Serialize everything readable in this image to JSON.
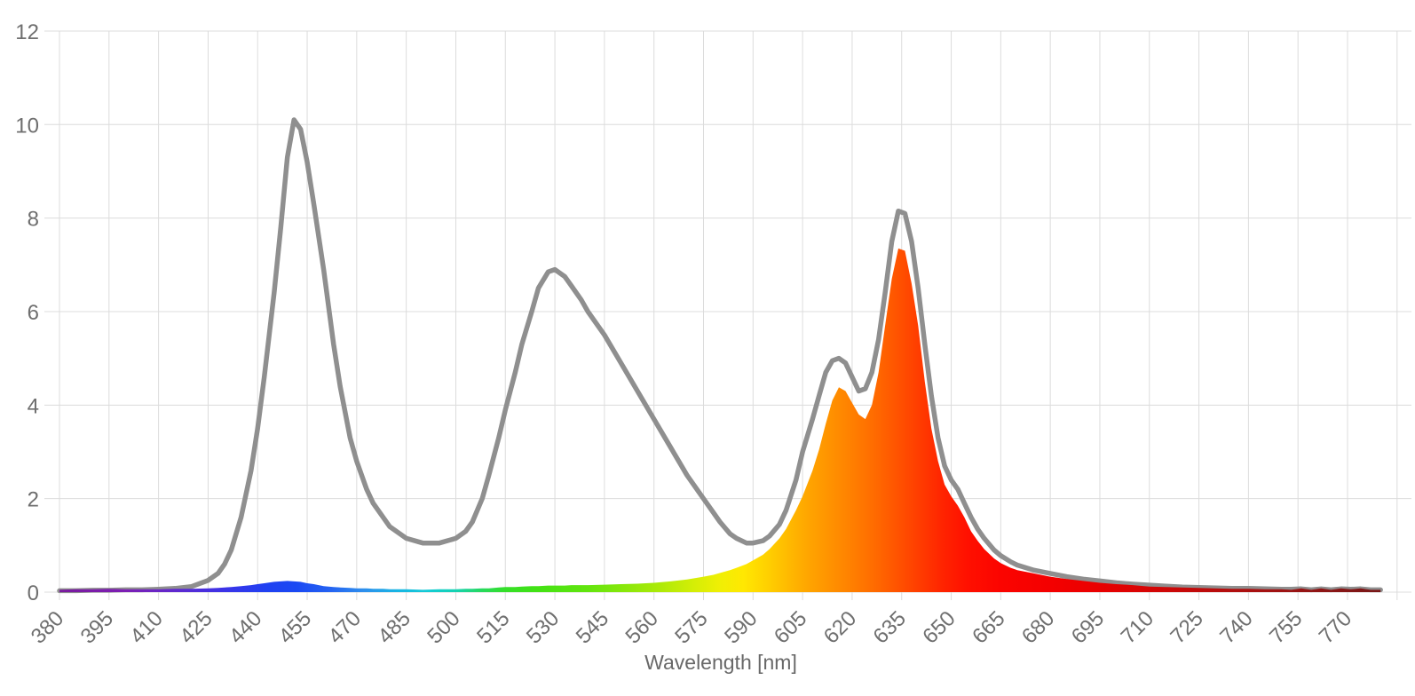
{
  "page": {
    "background": "#ffffff"
  },
  "chart_data": {
    "type": "area",
    "title": "",
    "xlabel": "Wavelength [nm]",
    "ylabel": "",
    "x_axis": {
      "min": 380,
      "max": 789,
      "tick_step": 15,
      "tick_labels": [
        380,
        395,
        410,
        425,
        440,
        455,
        470,
        485,
        500,
        515,
        530,
        545,
        560,
        575,
        590,
        605,
        620,
        635,
        650,
        665,
        680,
        695,
        710,
        725,
        740,
        755,
        770
      ],
      "unlabeled_gridlines": [
        785
      ],
      "gridlines": true,
      "tick_label_rotation_deg": -45
    },
    "y_axis": {
      "min": 0,
      "max": 12,
      "ticks": [
        0,
        2,
        4,
        6,
        8,
        10,
        12
      ],
      "gridlines": true
    },
    "colors": {
      "background": "#ffffff",
      "gridline": "#dcdcdc",
      "tick_label": "#6f6f6f",
      "axis_title": "#686868",
      "reference_line": "#8f8f8f"
    },
    "x": [
      380,
      385,
      390,
      395,
      400,
      405,
      410,
      415,
      420,
      425,
      428,
      430,
      432,
      435,
      438,
      440,
      442,
      445,
      447,
      449,
      451,
      453,
      455,
      457,
      460,
      463,
      465,
      468,
      470,
      473,
      475,
      478,
      480,
      485,
      490,
      495,
      500,
      503,
      505,
      508,
      510,
      513,
      515,
      518,
      520,
      523,
      525,
      528,
      530,
      533,
      535,
      538,
      540,
      545,
      550,
      555,
      560,
      565,
      570,
      575,
      578,
      580,
      583,
      585,
      588,
      590,
      593,
      595,
      598,
      600,
      603,
      605,
      608,
      610,
      612,
      614,
      616,
      618,
      620,
      622,
      624,
      626,
      628,
      630,
      632,
      634,
      636,
      638,
      640,
      642,
      644,
      646,
      648,
      650,
      652,
      654,
      656,
      658,
      660,
      663,
      665,
      668,
      670,
      675,
      680,
      685,
      690,
      695,
      700,
      705,
      710,
      715,
      720,
      725,
      730,
      735,
      740,
      745,
      750,
      753,
      756,
      759,
      762,
      765,
      768,
      771,
      774,
      777,
      780
    ],
    "series": [
      {
        "name": "reference-curve",
        "style": "line",
        "color": "#8f8f8f",
        "stroke_width": 5.5,
        "values": [
          0.03,
          0.03,
          0.04,
          0.04,
          0.05,
          0.05,
          0.06,
          0.08,
          0.12,
          0.25,
          0.4,
          0.6,
          0.9,
          1.6,
          2.6,
          3.5,
          4.6,
          6.4,
          7.8,
          9.3,
          10.1,
          9.9,
          9.2,
          8.3,
          6.9,
          5.3,
          4.4,
          3.3,
          2.8,
          2.2,
          1.9,
          1.6,
          1.4,
          1.15,
          1.05,
          1.05,
          1.15,
          1.3,
          1.5,
          2.0,
          2.5,
          3.3,
          3.9,
          4.7,
          5.3,
          6.0,
          6.5,
          6.85,
          6.9,
          6.75,
          6.55,
          6.25,
          6.0,
          5.5,
          4.9,
          4.3,
          3.7,
          3.1,
          2.5,
          2.0,
          1.7,
          1.5,
          1.25,
          1.15,
          1.05,
          1.05,
          1.1,
          1.2,
          1.45,
          1.75,
          2.4,
          3.0,
          3.7,
          4.2,
          4.7,
          4.95,
          5.0,
          4.9,
          4.6,
          4.3,
          4.35,
          4.7,
          5.4,
          6.4,
          7.5,
          8.15,
          8.1,
          7.5,
          6.5,
          5.3,
          4.2,
          3.3,
          2.7,
          2.4,
          2.2,
          1.9,
          1.6,
          1.35,
          1.15,
          0.9,
          0.78,
          0.65,
          0.58,
          0.47,
          0.4,
          0.33,
          0.28,
          0.24,
          0.2,
          0.17,
          0.15,
          0.13,
          0.11,
          0.1,
          0.09,
          0.08,
          0.08,
          0.07,
          0.06,
          0.06,
          0.07,
          0.05,
          0.07,
          0.05,
          0.07,
          0.06,
          0.07,
          0.05,
          0.05
        ]
      },
      {
        "name": "measured-spectrum",
        "style": "area",
        "fill": "spectral-gradient",
        "values": [
          0.05,
          0.06,
          0.06,
          0.07,
          0.06,
          0.06,
          0.06,
          0.07,
          0.07,
          0.08,
          0.09,
          0.1,
          0.11,
          0.13,
          0.15,
          0.17,
          0.19,
          0.22,
          0.23,
          0.24,
          0.23,
          0.22,
          0.19,
          0.17,
          0.13,
          0.11,
          0.1,
          0.09,
          0.08,
          0.08,
          0.07,
          0.07,
          0.06,
          0.06,
          0.05,
          0.06,
          0.06,
          0.07,
          0.07,
          0.08,
          0.08,
          0.1,
          0.11,
          0.11,
          0.12,
          0.13,
          0.13,
          0.14,
          0.14,
          0.14,
          0.15,
          0.15,
          0.15,
          0.16,
          0.17,
          0.18,
          0.2,
          0.23,
          0.27,
          0.33,
          0.37,
          0.41,
          0.47,
          0.52,
          0.6,
          0.68,
          0.8,
          0.92,
          1.15,
          1.35,
          1.75,
          2.05,
          2.6,
          3.05,
          3.6,
          4.1,
          4.38,
          4.3,
          4.05,
          3.8,
          3.7,
          4.0,
          4.7,
          5.7,
          6.7,
          7.35,
          7.3,
          6.6,
          5.7,
          4.5,
          3.5,
          2.8,
          2.3,
          2.05,
          1.85,
          1.6,
          1.3,
          1.1,
          0.92,
          0.72,
          0.62,
          0.52,
          0.47,
          0.4,
          0.33,
          0.28,
          0.24,
          0.2,
          0.17,
          0.15,
          0.12,
          0.11,
          0.1,
          0.09,
          0.08,
          0.07,
          0.07,
          0.06,
          0.06,
          0.05,
          0.08,
          0.05,
          0.08,
          0.05,
          0.08,
          0.06,
          0.08,
          0.05,
          0.05
        ]
      }
    ],
    "spectral_gradient": [
      {
        "wl": 380,
        "color": "#7a1a9e"
      },
      {
        "wl": 400,
        "color": "#7c1fb4"
      },
      {
        "wl": 415,
        "color": "#5f28cf"
      },
      {
        "wl": 430,
        "color": "#3b33e8"
      },
      {
        "wl": 443,
        "color": "#1f41f2"
      },
      {
        "wl": 452,
        "color": "#1a49f3"
      },
      {
        "wl": 462,
        "color": "#2563f2"
      },
      {
        "wl": 472,
        "color": "#2e8fed"
      },
      {
        "wl": 482,
        "color": "#18b4e4"
      },
      {
        "wl": 492,
        "color": "#12ccd4"
      },
      {
        "wl": 500,
        "color": "#15d2b2"
      },
      {
        "wl": 508,
        "color": "#27d95c"
      },
      {
        "wl": 515,
        "color": "#35df28"
      },
      {
        "wl": 525,
        "color": "#43e214"
      },
      {
        "wl": 540,
        "color": "#63e50e"
      },
      {
        "wl": 552,
        "color": "#8ce80a"
      },
      {
        "wl": 562,
        "color": "#aeea08"
      },
      {
        "wl": 572,
        "color": "#d4ee06"
      },
      {
        "wl": 580,
        "color": "#f0ef04"
      },
      {
        "wl": 587,
        "color": "#ffe802"
      },
      {
        "wl": 594,
        "color": "#ffd100"
      },
      {
        "wl": 600,
        "color": "#ffbc00"
      },
      {
        "wl": 607,
        "color": "#ffa400"
      },
      {
        "wl": 613,
        "color": "#ff9300"
      },
      {
        "wl": 620,
        "color": "#ff7f00"
      },
      {
        "wl": 627,
        "color": "#ff6a00"
      },
      {
        "wl": 634,
        "color": "#ff5200"
      },
      {
        "wl": 641,
        "color": "#ff3a00"
      },
      {
        "wl": 648,
        "color": "#ff2200"
      },
      {
        "wl": 655,
        "color": "#ff1000"
      },
      {
        "wl": 665,
        "color": "#fb0400"
      },
      {
        "wl": 680,
        "color": "#f40000"
      },
      {
        "wl": 695,
        "color": "#e90000"
      },
      {
        "wl": 710,
        "color": "#d60505"
      },
      {
        "wl": 725,
        "color": "#c00b0b"
      },
      {
        "wl": 740,
        "color": "#ab1010"
      },
      {
        "wl": 755,
        "color": "#981414"
      },
      {
        "wl": 768,
        "color": "#871616"
      },
      {
        "wl": 780,
        "color": "#781717"
      }
    ]
  }
}
